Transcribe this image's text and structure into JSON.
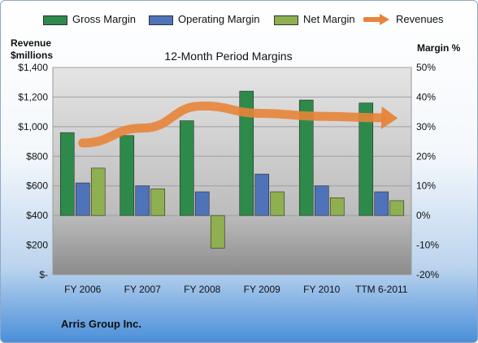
{
  "chart_data": {
    "type": "bar",
    "title": "12-Month Period Margins",
    "categories": [
      "FY 2006",
      "FY 2007",
      "FY 2008",
      "FY 2009",
      "FY 2010",
      "TTM 6-2011"
    ],
    "series": [
      {
        "name": "Gross Margin",
        "axis": "right",
        "color": "#2e8a4a",
        "values": [
          28,
          27,
          32,
          42,
          39,
          38
        ]
      },
      {
        "name": "Operating Margin",
        "axis": "right",
        "color": "#4f73b8",
        "values": [
          11,
          10,
          8,
          14,
          10,
          8
        ]
      },
      {
        "name": "Net Margin",
        "axis": "right",
        "color": "#8fb050",
        "values": [
          16,
          9,
          -11,
          8,
          6,
          5
        ]
      },
      {
        "name": "Revenues",
        "axis": "left",
        "type": "line",
        "color": "#e8843a",
        "values": [
          890,
          990,
          1140,
          1090,
          1070,
          1060
        ]
      }
    ],
    "y_left": {
      "label": [
        "Revenue",
        "$millions"
      ],
      "ylim": [
        0,
        1400
      ],
      "ticks": [
        "$-",
        "$200",
        "$400",
        "$600",
        "$800",
        "$1,000",
        "$1,200",
        "$1,400"
      ]
    },
    "y_right": {
      "label": "Margin %",
      "ylim": [
        -20,
        50
      ],
      "ticks": [
        "-20%",
        "-10%",
        "0%",
        "10%",
        "20%",
        "30%",
        "40%",
        "50%"
      ]
    },
    "legend": "top",
    "grid": true
  },
  "footer": {
    "company": "Arris Group Inc."
  }
}
